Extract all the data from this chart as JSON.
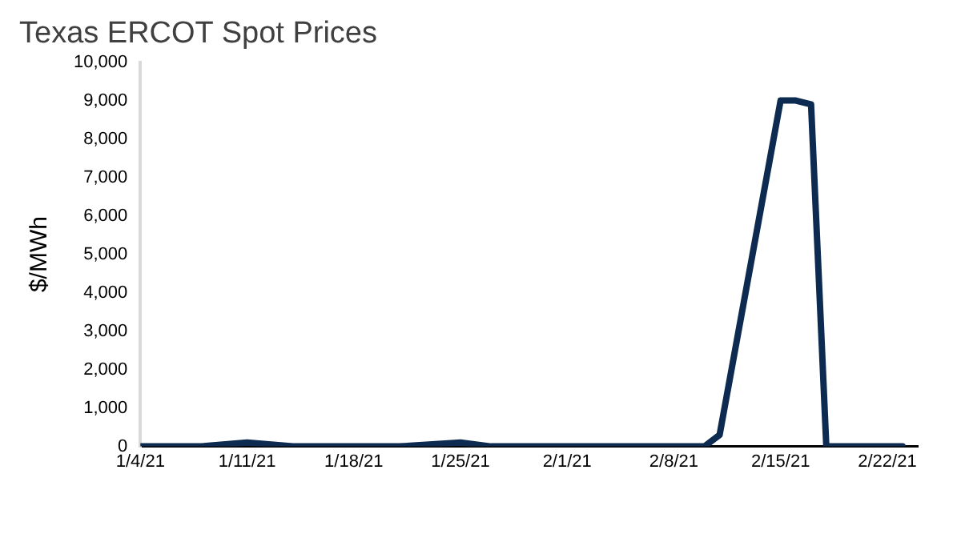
{
  "chart_data": {
    "type": "line",
    "title": "Texas ERCOT Spot Prices",
    "ylabel": "$/MWh",
    "x": [
      "--01-04",
      "--01-08",
      "--01-11",
      "--01-14",
      "--01-21",
      "--01-25",
      "--01-27",
      "--02-01",
      "--02-07",
      "--02-09",
      "--02-10",
      "--02-11",
      "--02-15",
      "--02-16",
      "--02-17",
      "--02-18",
      "--02-21",
      "--02-23"
    ],
    "series": [
      {
        "color": "#0d2a50",
        "values": [
          0,
          0,
          100,
          0,
          0,
          100,
          0,
          0,
          0,
          0,
          0,
          300,
          9000,
          9000,
          8900,
          0,
          0,
          0
        ]
      }
    ],
    "xlim": [
      "--01-04",
      "--02-24"
    ],
    "xticks": [
      {
        "value": "--01-04",
        "label": "1/4/21"
      },
      {
        "value": "--01-11",
        "label": "1/11/21"
      },
      {
        "value": "--01-18",
        "label": "1/18/21"
      },
      {
        "value": "--01-25",
        "label": "1/25/21"
      },
      {
        "value": "--02-01",
        "label": "2/1/21"
      },
      {
        "value": "--02-08",
        "label": "2/8/21"
      },
      {
        "value": "--02-15",
        "label": "2/15/21"
      },
      {
        "value": "--02-22",
        "label": "2/22/21"
      }
    ],
    "ylim": [
      0,
      10000
    ],
    "yticks": [
      {
        "value": 0,
        "label": "0"
      },
      {
        "value": 1000,
        "label": "1,000"
      },
      {
        "value": 2000,
        "label": "2,000"
      },
      {
        "value": 3000,
        "label": "3,000"
      },
      {
        "value": 4000,
        "label": "4,000"
      },
      {
        "value": 5000,
        "label": "5,000"
      },
      {
        "value": 6000,
        "label": "6,000"
      },
      {
        "value": 7000,
        "label": "7,000"
      },
      {
        "value": 8000,
        "label": "8,000"
      },
      {
        "value": 9000,
        "label": "9,000"
      },
      {
        "value": 10000,
        "label": "10,000"
      }
    ]
  }
}
